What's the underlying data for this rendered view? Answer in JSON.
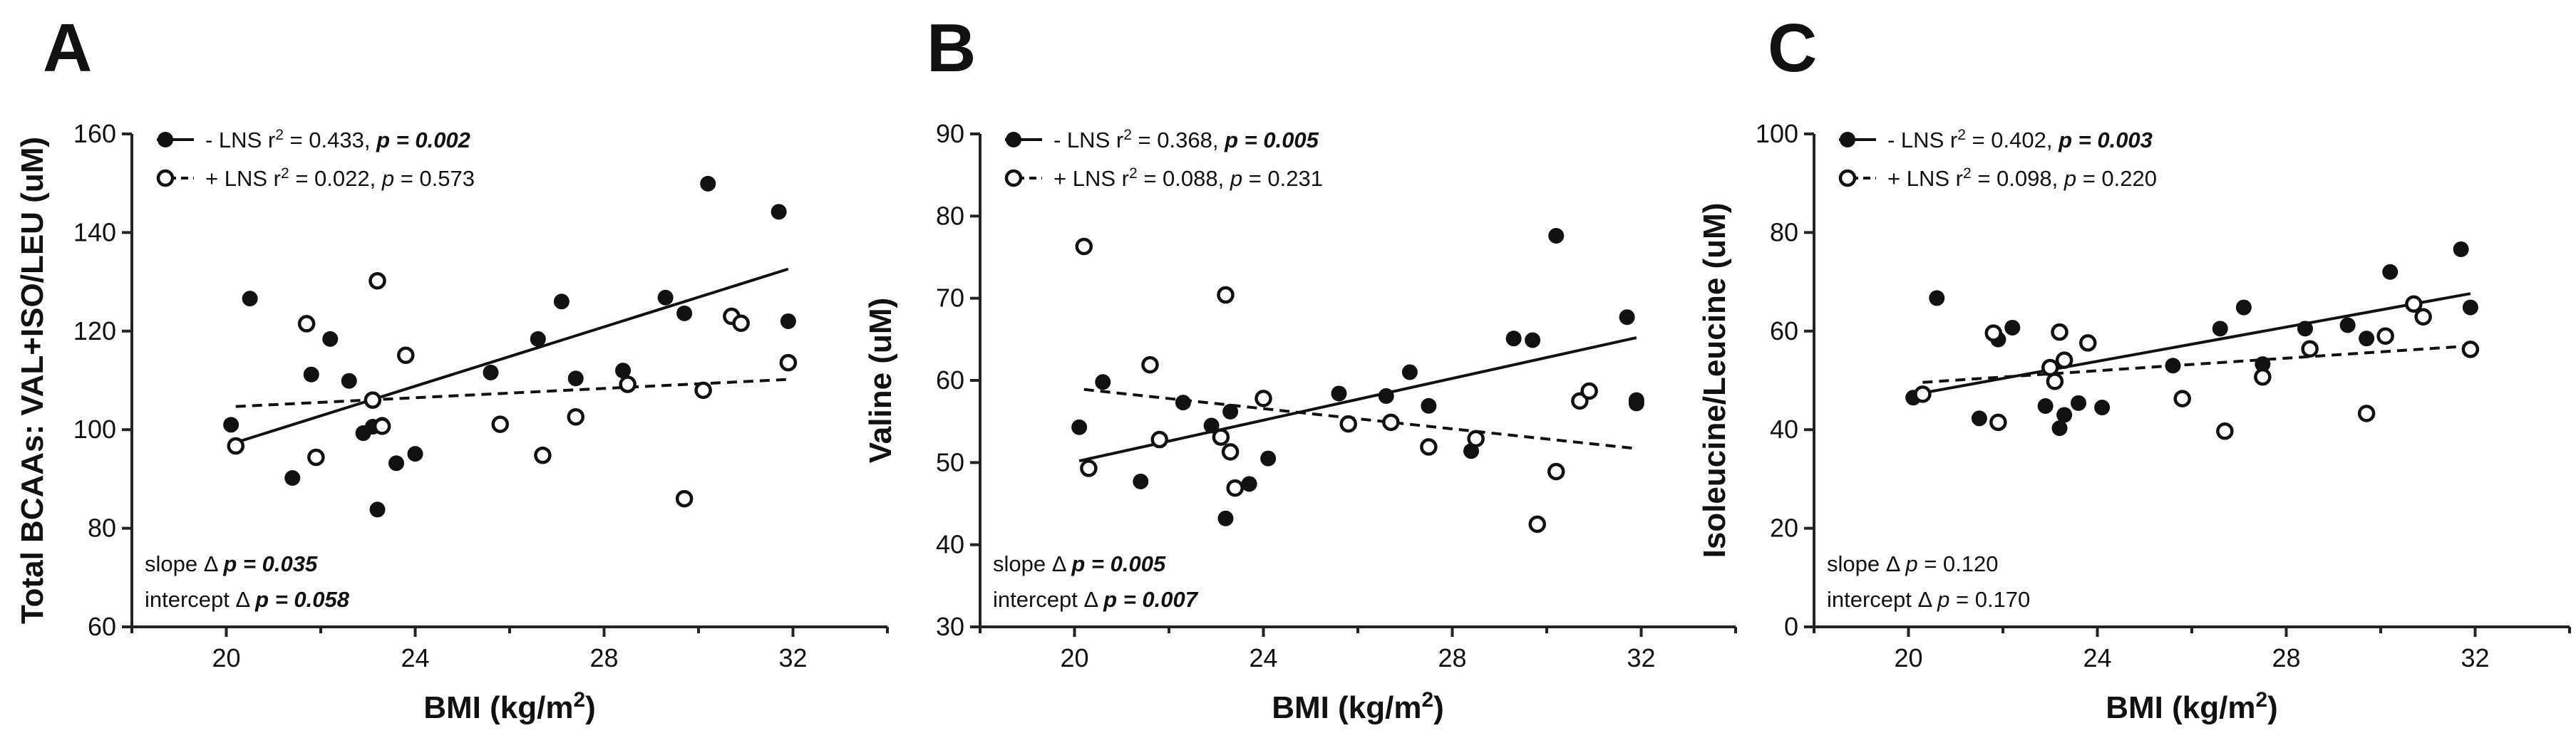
{
  "chart_data": [
    {
      "panel": "A",
      "type": "scatter",
      "xlabel": "BMI (kg/m²)",
      "ylabel": "Total BCAAs: VAL+ISO/LEU (uM)",
      "xlim": [
        18,
        34
      ],
      "ylim": [
        60,
        160
      ],
      "xticks": [
        20,
        24,
        28,
        32
      ],
      "yticks": [
        60,
        80,
        100,
        120,
        140,
        160
      ],
      "legend": [
        {
          "name": "- LNS",
          "stat": "r² = 0.433,",
          "p_label": "p",
          "p_value": "= 0.002",
          "p_bold": true,
          "marker": "filled",
          "line": "solid"
        },
        {
          "name": "+ LNS",
          "stat": "r² = 0.022,",
          "p_label": "p",
          "p_value": "= 0.573",
          "p_bold": false,
          "marker": "open",
          "line": "dashed"
        }
      ],
      "stats": [
        {
          "label": "slope Δ",
          "p_label": "p",
          "p_value": "= 0.035",
          "bold": true
        },
        {
          "label": "intercept Δ",
          "p_label": "p",
          "p_value": "= 0.058",
          "bold": true
        }
      ],
      "series": [
        {
          "name": "- LNS",
          "marker": "filled",
          "x": [
            20.1,
            20.5,
            21.4,
            21.8,
            22.2,
            22.6,
            22.9,
            23.1,
            23.3,
            23.2,
            23.6,
            24.0,
            25.6,
            26.6,
            27.1,
            27.4,
            28.4,
            29.3,
            29.7,
            30.2,
            31.7,
            31.9
          ],
          "y": [
            101.0,
            126.6,
            90.2,
            111.2,
            118.4,
            109.9,
            99.3,
            100.6,
            101.0,
            83.8,
            93.2,
            95.1,
            111.6,
            118.4,
            126.0,
            110.4,
            112.0,
            126.8,
            123.6,
            149.9,
            144.2,
            122.0
          ]
        },
        {
          "name": "+ LNS",
          "marker": "open",
          "x": [
            20.2,
            21.7,
            21.9,
            23.1,
            23.2,
            23.3,
            23.8,
            25.8,
            26.7,
            27.4,
            28.5,
            29.7,
            30.1,
            30.7,
            30.9,
            31.9
          ],
          "y": [
            96.7,
            121.5,
            94.4,
            106.0,
            130.2,
            100.7,
            115.1,
            101.1,
            94.8,
            102.6,
            109.2,
            86.0,
            108.0,
            123.0,
            121.6,
            113.6
          ]
        }
      ],
      "fits": [
        {
          "name": "- LNS",
          "style": "solid",
          "x": [
            20.1,
            31.9
          ],
          "y": [
            97.1,
            132.6
          ]
        },
        {
          "name": "+ LNS",
          "style": "dashed",
          "x": [
            20.2,
            31.9
          ],
          "y": [
            104.7,
            110.2
          ]
        }
      ]
    },
    {
      "panel": "B",
      "type": "scatter",
      "xlabel": "BMI (kg/m²)",
      "ylabel": "Valine (uM)",
      "xlim": [
        18,
        34
      ],
      "ylim": [
        30,
        90
      ],
      "xticks": [
        20,
        24,
        28,
        32
      ],
      "yticks": [
        30,
        40,
        50,
        60,
        70,
        80,
        90
      ],
      "legend": [
        {
          "name": "- LNS",
          "stat": "r² = 0.368,",
          "p_label": "p",
          "p_value": "= 0.005",
          "p_bold": true,
          "marker": "filled",
          "line": "solid"
        },
        {
          "name": "+ LNS",
          "stat": "r² = 0.088,",
          "p_label": "p",
          "p_value": "= 0.231",
          "p_bold": false,
          "marker": "open",
          "line": "dashed"
        }
      ],
      "stats": [
        {
          "label": "slope Δ",
          "p_label": "p",
          "p_value": "= 0.005",
          "bold": true
        },
        {
          "label": "intercept Δ",
          "p_label": "p",
          "p_value": "= 0.007",
          "bold": true
        }
      ],
      "series": [
        {
          "name": "- LNS",
          "marker": "filled",
          "x": [
            20.1,
            20.6,
            21.4,
            21.8,
            22.3,
            22.9,
            23.2,
            23.3,
            23.7,
            24.1,
            25.6,
            26.6,
            27.1,
            27.5,
            28.4,
            29.3,
            29.7,
            30.2,
            31.7,
            31.9,
            31.9
          ],
          "y": [
            54.3,
            59.8,
            47.7,
            52.9,
            57.3,
            54.5,
            43.2,
            56.2,
            47.4,
            50.5,
            58.4,
            58.1,
            61.0,
            56.9,
            51.4,
            65.1,
            64.9,
            77.6,
            67.7,
            57.6,
            57.2
          ]
        },
        {
          "name": "+ LNS",
          "marker": "open",
          "x": [
            20.2,
            20.3,
            21.6,
            21.8,
            23.1,
            23.2,
            23.3,
            23.4,
            24.0,
            25.8,
            26.7,
            27.5,
            28.5,
            29.8,
            30.2,
            30.7,
            30.9
          ],
          "y": [
            76.3,
            49.3,
            61.9,
            52.8,
            53.1,
            70.4,
            51.3,
            46.9,
            57.8,
            54.7,
            54.9,
            51.9,
            52.9,
            42.5,
            48.9,
            57.5,
            58.7
          ]
        }
      ],
      "fits": [
        {
          "name": "- LNS",
          "style": "solid",
          "x": [
            20.1,
            31.9
          ],
          "y": [
            50.2,
            65.2
          ]
        },
        {
          "name": "+ LNS",
          "style": "dashed",
          "x": [
            20.2,
            31.9
          ],
          "y": [
            58.9,
            51.7
          ]
        }
      ]
    },
    {
      "panel": "C",
      "type": "scatter",
      "xlabel": "BMI (kg/m²)",
      "ylabel": "Isoleucine/Leucine (uM)",
      "xlim": [
        18,
        34
      ],
      "ylim": [
        0,
        100
      ],
      "xticks": [
        20,
        24,
        28,
        32
      ],
      "yticks": [
        0,
        20,
        40,
        60,
        80,
        100
      ],
      "legend": [
        {
          "name": "- LNS",
          "stat": "r² = 0.402,",
          "p_label": "p",
          "p_value": "= 0.003",
          "p_bold": true,
          "marker": "filled",
          "line": "solid"
        },
        {
          "name": "+ LNS",
          "stat": "r² = 0.098,",
          "p_label": "p",
          "p_value": "= 0.220",
          "p_bold": false,
          "marker": "open",
          "line": "dashed"
        }
      ],
      "stats": [
        {
          "label": "slope Δ",
          "p_label": "p",
          "p_value": "= 0.120",
          "bold": false
        },
        {
          "label": "intercept Δ",
          "p_label": "p",
          "p_value": "= 0.170",
          "bold": false
        }
      ],
      "series": [
        {
          "name": "- LNS",
          "marker": "filled",
          "x": [
            20.1,
            20.6,
            21.5,
            21.9,
            22.2,
            22.9,
            23.2,
            23.3,
            23.6,
            24.1,
            25.6,
            26.6,
            27.1,
            27.5,
            28.4,
            29.3,
            29.7,
            30.2,
            31.7,
            31.9
          ],
          "y": [
            46.5,
            66.7,
            42.3,
            58.3,
            60.7,
            44.8,
            40.3,
            43.0,
            45.4,
            44.5,
            53.0,
            60.5,
            64.8,
            53.3,
            60.5,
            61.2,
            58.5,
            72.0,
            76.6,
            64.8
          ]
        },
        {
          "name": "+ LNS",
          "marker": "open",
          "x": [
            20.3,
            21.8,
            21.9,
            23.0,
            23.1,
            23.2,
            23.3,
            23.8,
            25.8,
            26.7,
            27.5,
            28.5,
            29.7,
            30.1,
            30.7,
            30.9,
            31.9
          ],
          "y": [
            47.2,
            59.6,
            41.5,
            52.6,
            49.8,
            59.8,
            54.1,
            57.6,
            46.3,
            39.7,
            50.7,
            56.4,
            43.3,
            59.0,
            65.5,
            62.9,
            56.3
          ]
        }
      ],
      "fits": [
        {
          "name": "- LNS",
          "style": "solid",
          "x": [
            20.1,
            31.9
          ],
          "y": [
            47.1,
            67.6
          ]
        },
        {
          "name": "+ LNS",
          "style": "dashed",
          "x": [
            20.3,
            31.9
          ],
          "y": [
            49.6,
            57.0
          ]
        }
      ]
    }
  ]
}
